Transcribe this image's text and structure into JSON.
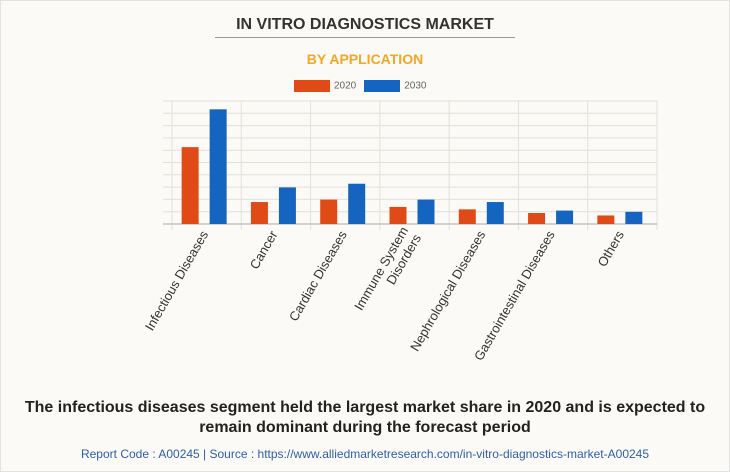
{
  "title": "IN VITRO DIAGNOSTICS MARKET",
  "subtitle": "BY APPLICATION",
  "chart_data": {
    "type": "bar",
    "categories": [
      "Infectious Diseases",
      "Cancer",
      "Cardiac Diseases",
      "Immune System Disorders",
      "Nephrological Diseases",
      "Gastrointestinal Diseases",
      "Others"
    ],
    "series": [
      {
        "name": "2020",
        "color": "#e04a17",
        "values": [
          6.3,
          1.8,
          2.0,
          1.4,
          1.2,
          0.9,
          0.7
        ]
      },
      {
        "name": "2030",
        "color": "#1565c0",
        "values": [
          9.4,
          3.0,
          3.3,
          2.0,
          1.8,
          1.1,
          1.0
        ]
      }
    ],
    "ylim": [
      0,
      10
    ],
    "grid": true,
    "legend": "top"
  },
  "conclusion": "The infectious diseases segment held the largest market share in 2020 and is expected to remain dominant during the forecast period",
  "footer": "Report Code : A00245  |  Source : https://www.alliedmarketresearch.com/in-vitro-diagnostics-market-A00245"
}
